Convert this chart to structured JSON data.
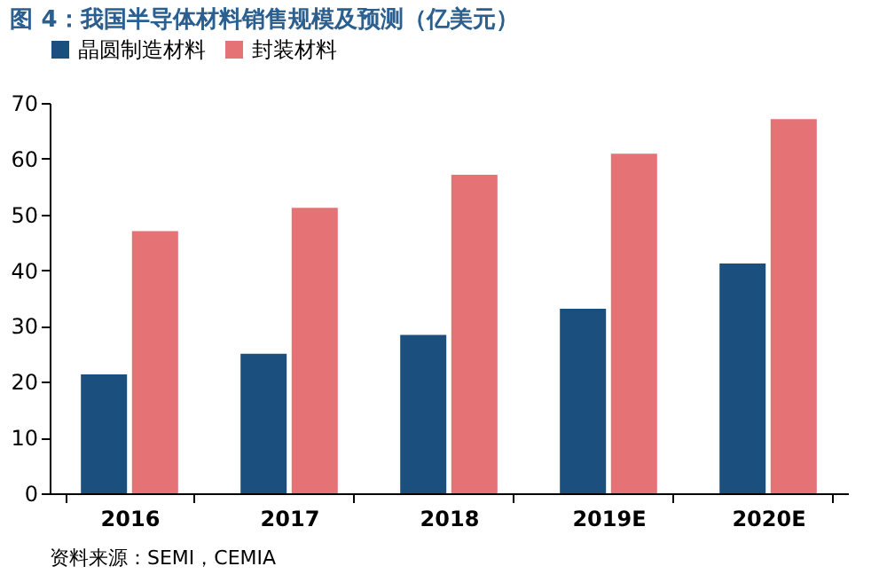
{
  "chart_data": {
    "type": "bar",
    "title": "图 4：我国半导体材料销售规模及预测（亿美元）",
    "categories": [
      "2016",
      "2017",
      "2018",
      "2019E",
      "2020E"
    ],
    "series": [
      {
        "name": "晶圆制造材料",
        "color": "#1b4f7e",
        "values": [
          21.3,
          25.0,
          28.4,
          33.1,
          41.2
        ]
      },
      {
        "name": "封装材料",
        "color": "#e57375",
        "values": [
          47.0,
          51.2,
          57.1,
          60.9,
          67.1
        ]
      }
    ],
    "ylim": [
      0,
      70
    ],
    "yticks": [
      0,
      10,
      20,
      30,
      40,
      50,
      60,
      70
    ],
    "grid": false,
    "legend": "top",
    "annotations": [
      "资料来源：SEMI，CEMIA"
    ]
  }
}
